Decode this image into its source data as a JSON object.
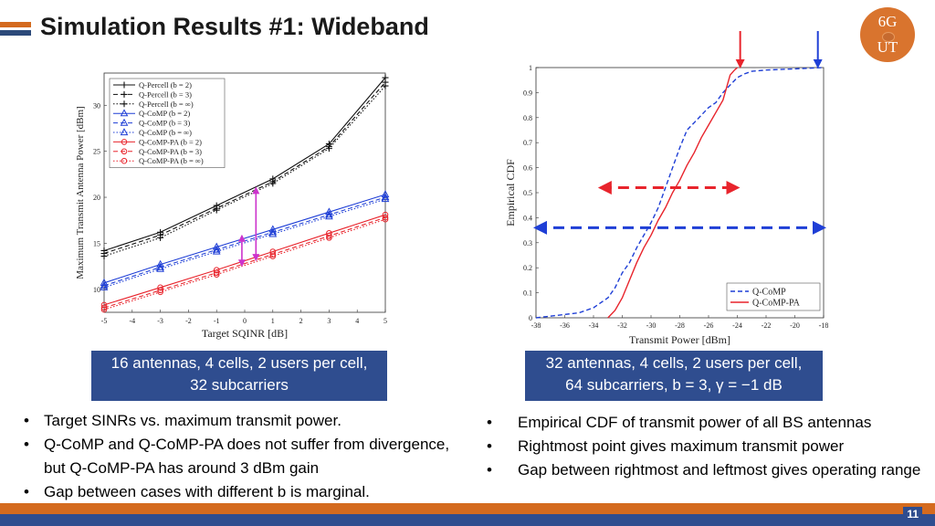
{
  "slide": {
    "title": "Simulation Results #1: Wideband",
    "logo_line1": "6G",
    "logo_line2": "UT",
    "page_number": "11"
  },
  "captions": {
    "left_line1": "16 antennas, 4 cells, 2 users per cell,",
    "left_line2": "32 subcarriers",
    "right_line1": "32 antennas, 4 cells, 2 users per cell,",
    "right_line2": "64 subcarriers, b = 3, γ = −1 dB"
  },
  "bullets_left": [
    "Target SINRs vs. maximum transmit power.",
    "Q-CoMP and Q-CoMP-PA does not suffer from divergence, but Q-CoMP-PA has around 3 dBm gain",
    "Gap between cases with different b is marginal."
  ],
  "bullets_right": [
    "Empirical CDF of transmit power of all BS antennas",
    "Rightmost point gives maximum transmit power",
    "Gap between rightmost and leftmost gives operating range"
  ],
  "chart_data": [
    {
      "type": "line",
      "xlabel": "Target SQINR [dB]",
      "ylabel": "Maximum Transmit Antenna Power [dBm]",
      "xlim": [
        -5,
        5
      ],
      "ylim": [
        7.5,
        33.5
      ],
      "xticks": [
        "-5",
        "-4",
        "-3",
        "-2",
        "-1",
        "0",
        "1",
        "2",
        "3",
        "4",
        "5"
      ],
      "yticks": [
        "10",
        "15",
        "20",
        "25",
        "30"
      ],
      "x": [
        -5,
        -3,
        -1,
        1,
        3,
        5
      ],
      "series": [
        {
          "name": "Q-Percell (b = 2)",
          "color": "#111111",
          "dash": "solid",
          "marker": "plus",
          "values": [
            14.2,
            16.2,
            19.1,
            22.0,
            25.8,
            33.0
          ]
        },
        {
          "name": "Q-Percell (b = 3)",
          "color": "#111111",
          "dash": "dashed",
          "marker": "plus",
          "values": [
            13.9,
            15.9,
            18.8,
            21.7,
            25.5,
            32.5
          ]
        },
        {
          "name": "Q-Percell (b = ∞)",
          "color": "#111111",
          "dash": "dotted",
          "marker": "plus",
          "values": [
            13.6,
            15.6,
            18.6,
            21.5,
            25.3,
            32.1
          ]
        },
        {
          "name": "Q-CoMP (b = 2)",
          "color": "#1f3fd6",
          "dash": "solid",
          "marker": "triangle",
          "values": [
            10.7,
            12.7,
            14.6,
            16.5,
            18.4,
            20.3
          ]
        },
        {
          "name": "Q-CoMP (b = 3)",
          "color": "#1f3fd6",
          "dash": "dashed",
          "marker": "triangle",
          "values": [
            10.4,
            12.4,
            14.3,
            16.2,
            18.1,
            20.0
          ]
        },
        {
          "name": "Q-CoMP (b = ∞)",
          "color": "#1f3fd6",
          "dash": "dotted",
          "marker": "triangle",
          "values": [
            10.2,
            12.2,
            14.1,
            16.0,
            17.9,
            19.8
          ]
        },
        {
          "name": "Q-CoMP-PA (b = 2)",
          "color": "#e8242c",
          "dash": "solid",
          "marker": "circle",
          "values": [
            8.3,
            10.2,
            12.1,
            14.1,
            16.1,
            18.1
          ]
        },
        {
          "name": "Q-CoMP-PA (b = 3)",
          "color": "#e8242c",
          "dash": "dashed",
          "marker": "circle",
          "values": [
            8.0,
            9.9,
            11.8,
            13.8,
            15.8,
            17.8
          ]
        },
        {
          "name": "Q-CoMP-PA (b = ∞)",
          "color": "#e8242c",
          "dash": "dotted",
          "marker": "circle",
          "values": [
            7.8,
            9.7,
            11.6,
            13.6,
            15.6,
            17.6
          ]
        }
      ],
      "annotations": [
        {
          "type": "double-arrow",
          "color": "#cc33cc",
          "x": 0.4,
          "y_from": 21.0,
          "y_to": 13.2
        },
        {
          "type": "double-arrow",
          "color": "#cc33cc",
          "x": -0.1,
          "y_from": 15.8,
          "y_to": 12.6
        }
      ],
      "legend": "top-left"
    },
    {
      "type": "line",
      "xlabel": "Transmit Power [dBm]",
      "ylabel": "Empirical CDF",
      "xlim": [
        -38,
        -18
      ],
      "ylim": [
        0,
        1
      ],
      "xticks": [
        "-38",
        "-36",
        "-34",
        "-32",
        "-30",
        "-28",
        "-26",
        "-24",
        "-22",
        "-20",
        "-18"
      ],
      "yticks": [
        "0",
        "0.1",
        "0.2",
        "0.3",
        "0.4",
        "0.5",
        "0.6",
        "0.7",
        "0.8",
        "0.9",
        "1"
      ],
      "series": [
        {
          "name": "Q-CoMP",
          "color": "#1f3fd6",
          "dash": "dashed",
          "x": [
            -38,
            -36.5,
            -35,
            -34,
            -33,
            -32.5,
            -32,
            -31.5,
            -31,
            -30.5,
            -30,
            -29.5,
            -29,
            -28.5,
            -28,
            -27.5,
            -27,
            -26.5,
            -26,
            -25.5,
            -25,
            -24.5,
            -24,
            -23.5,
            -23,
            -22,
            -20,
            -18
          ],
          "y": [
            0.0,
            0.01,
            0.02,
            0.04,
            0.08,
            0.12,
            0.18,
            0.22,
            0.28,
            0.33,
            0.38,
            0.44,
            0.52,
            0.6,
            0.68,
            0.75,
            0.78,
            0.81,
            0.84,
            0.86,
            0.9,
            0.93,
            0.96,
            0.975,
            0.985,
            0.99,
            0.995,
            1.0
          ]
        },
        {
          "name": "Q-CoMP-PA",
          "color": "#e8242c",
          "dash": "solid",
          "x": [
            -33,
            -32.5,
            -32,
            -31.5,
            -31,
            -30.5,
            -30,
            -29.5,
            -29,
            -28.5,
            -28,
            -27.5,
            -27,
            -26.5,
            -26,
            -25.5,
            -25,
            -24.7,
            -24.5,
            -24.2,
            -24
          ],
          "y": [
            0.0,
            0.03,
            0.08,
            0.15,
            0.22,
            0.28,
            0.33,
            0.39,
            0.44,
            0.5,
            0.55,
            0.61,
            0.66,
            0.72,
            0.77,
            0.82,
            0.87,
            0.93,
            0.97,
            0.99,
            1.0
          ]
        }
      ],
      "annotations": [
        {
          "type": "double-arrow",
          "color": "#e8242c",
          "dash": "dashed",
          "y": 0.52,
          "x_from": -33.5,
          "x_to": -24
        },
        {
          "type": "double-arrow",
          "color": "#1f3fd6",
          "dash": "dashed",
          "y": 0.36,
          "x_from": -38,
          "x_to": -18
        },
        {
          "type": "down-arrow",
          "color": "#e8242c",
          "x": -23.8,
          "y_target": 1.0
        },
        {
          "type": "down-arrow",
          "color": "#1f3fd6",
          "x": -18.4,
          "y_target": 1.0
        }
      ],
      "legend": "bottom-right"
    }
  ]
}
